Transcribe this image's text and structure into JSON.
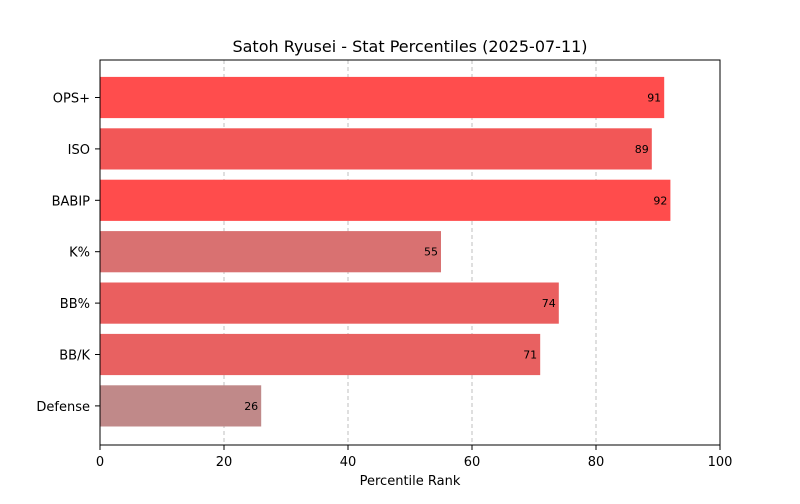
{
  "chart_data": {
    "type": "bar",
    "orientation": "horizontal",
    "title": "Satoh Ryusei - Stat Percentiles (2025-07-11)",
    "xlabel": "Percentile Rank",
    "ylabel": "",
    "xlim": [
      0,
      100
    ],
    "x_ticks": [
      0,
      20,
      40,
      60,
      80,
      100
    ],
    "grid": "x-dashed",
    "legend": "none",
    "categories": [
      "OPS+",
      "ISO",
      "BABIP",
      "K%",
      "BB%",
      "BB/K",
      "Defense"
    ],
    "values": [
      91,
      89,
      92,
      55,
      74,
      71,
      26
    ],
    "bar_colors": [
      "#ff4d4d",
      "#f25757",
      "#ff4c4c",
      "#d97171",
      "#ea5f5f",
      "#e86161",
      "#c08989"
    ]
  }
}
